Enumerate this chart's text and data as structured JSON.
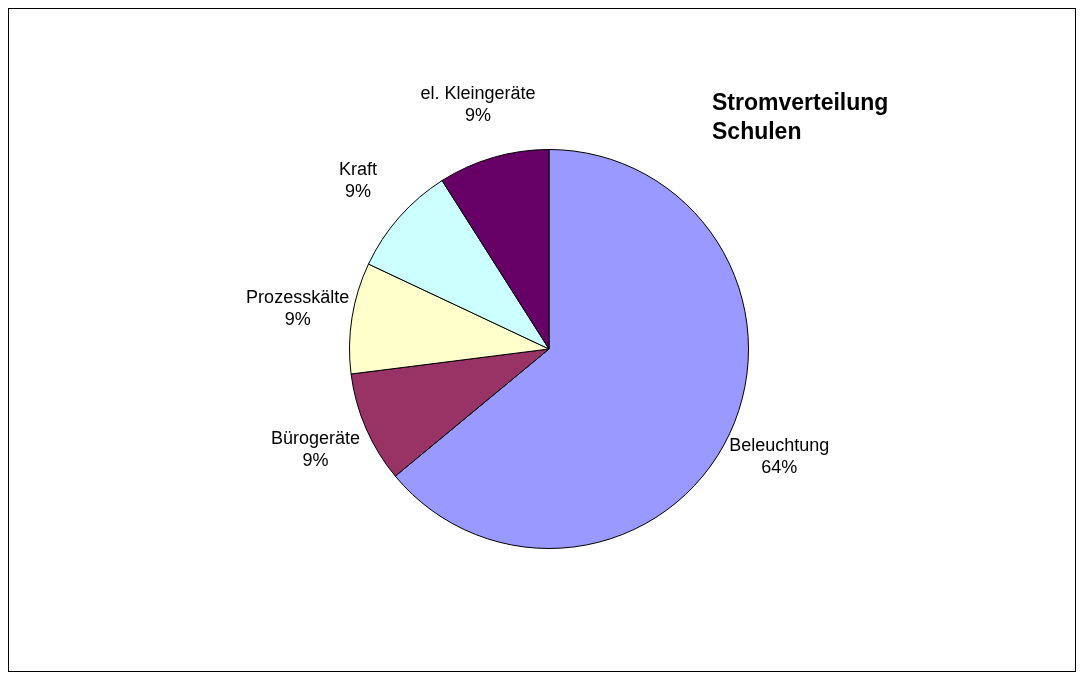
{
  "chart_data": {
    "type": "pie",
    "title": "Stromverteilung\nSchulen",
    "categories": [
      "Beleuchtung",
      "Bürogeräte",
      "Prozesskälte",
      "Kraft",
      "el. Kleingeräte"
    ],
    "values": [
      64,
      9,
      9,
      9,
      9
    ],
    "value_labels": [
      "64%",
      "9%",
      "9%",
      "9%",
      "9%"
    ],
    "colors": [
      "#9999ff",
      "#993366",
      "#ffffcc",
      "#ccffff",
      "#660066"
    ],
    "legend": false
  }
}
